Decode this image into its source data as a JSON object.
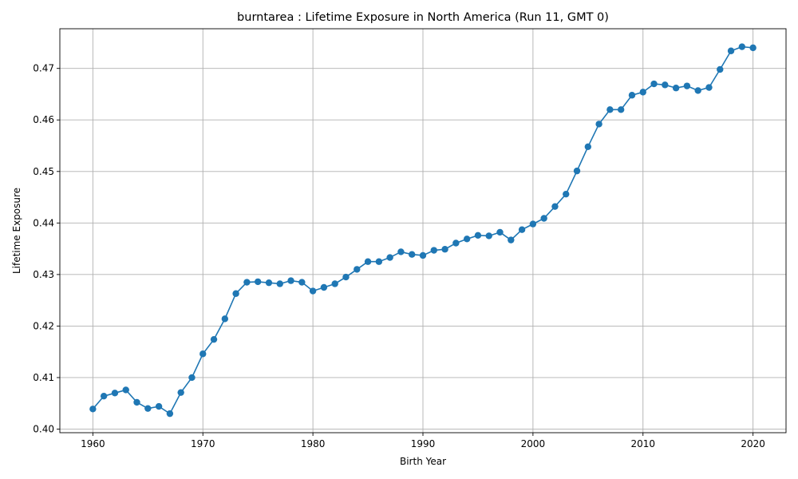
{
  "chart_data": {
    "type": "line",
    "title": "burntarea : Lifetime Exposure in North America (Run 11, GMT 0)",
    "xlabel": "Birth Year",
    "ylabel": "Lifetime Exposure",
    "xlim": [
      1957,
      2023
    ],
    "ylim": [
      0.3993,
      0.4777
    ],
    "xticks": [
      1960,
      1970,
      1980,
      1990,
      2000,
      2010,
      2020
    ],
    "xtick_labels": [
      "1960",
      "1970",
      "1980",
      "1990",
      "2000",
      "2010",
      "2020"
    ],
    "yticks": [
      0.4,
      0.41,
      0.42,
      0.43,
      0.44,
      0.45,
      0.46,
      0.47
    ],
    "ytick_labels": [
      "0.40",
      "0.41",
      "0.42",
      "0.43",
      "0.44",
      "0.45",
      "0.46",
      "0.47"
    ],
    "grid": true,
    "legend": "none",
    "series": [
      {
        "color": "#1f77b4",
        "marker": "circle",
        "x": [
          1960,
          1961,
          1962,
          1963,
          1964,
          1965,
          1966,
          1967,
          1968,
          1969,
          1970,
          1971,
          1972,
          1973,
          1974,
          1975,
          1976,
          1977,
          1978,
          1979,
          1980,
          1981,
          1982,
          1983,
          1984,
          1985,
          1986,
          1987,
          1988,
          1989,
          1990,
          1991,
          1992,
          1993,
          1994,
          1995,
          1996,
          1997,
          1998,
          1999,
          2000,
          2001,
          2002,
          2003,
          2004,
          2005,
          2006,
          2007,
          2008,
          2009,
          2010,
          2011,
          2012,
          2013,
          2014,
          2015,
          2016,
          2017,
          2018,
          2019,
          2020
        ],
        "y": [
          0.4039,
          0.4064,
          0.407,
          0.4076,
          0.4052,
          0.404,
          0.4044,
          0.403,
          0.4071,
          0.41,
          0.4146,
          0.4174,
          0.4214,
          0.4263,
          0.4285,
          0.4286,
          0.4284,
          0.4282,
          0.4288,
          0.4285,
          0.4268,
          0.4275,
          0.4282,
          0.4295,
          0.431,
          0.4325,
          0.4325,
          0.4333,
          0.4344,
          0.4339,
          0.4337,
          0.4347,
          0.4349,
          0.4361,
          0.4369,
          0.4376,
          0.4375,
          0.4382,
          0.4367,
          0.4387,
          0.4398,
          0.4409,
          0.4432,
          0.4456,
          0.4501,
          0.4548,
          0.4592,
          0.462,
          0.462,
          0.4648,
          0.4654,
          0.467,
          0.4668,
          0.4662,
          0.4666,
          0.4657,
          0.4663,
          0.4698,
          0.4734,
          0.4742,
          0.474
        ]
      }
    ]
  }
}
